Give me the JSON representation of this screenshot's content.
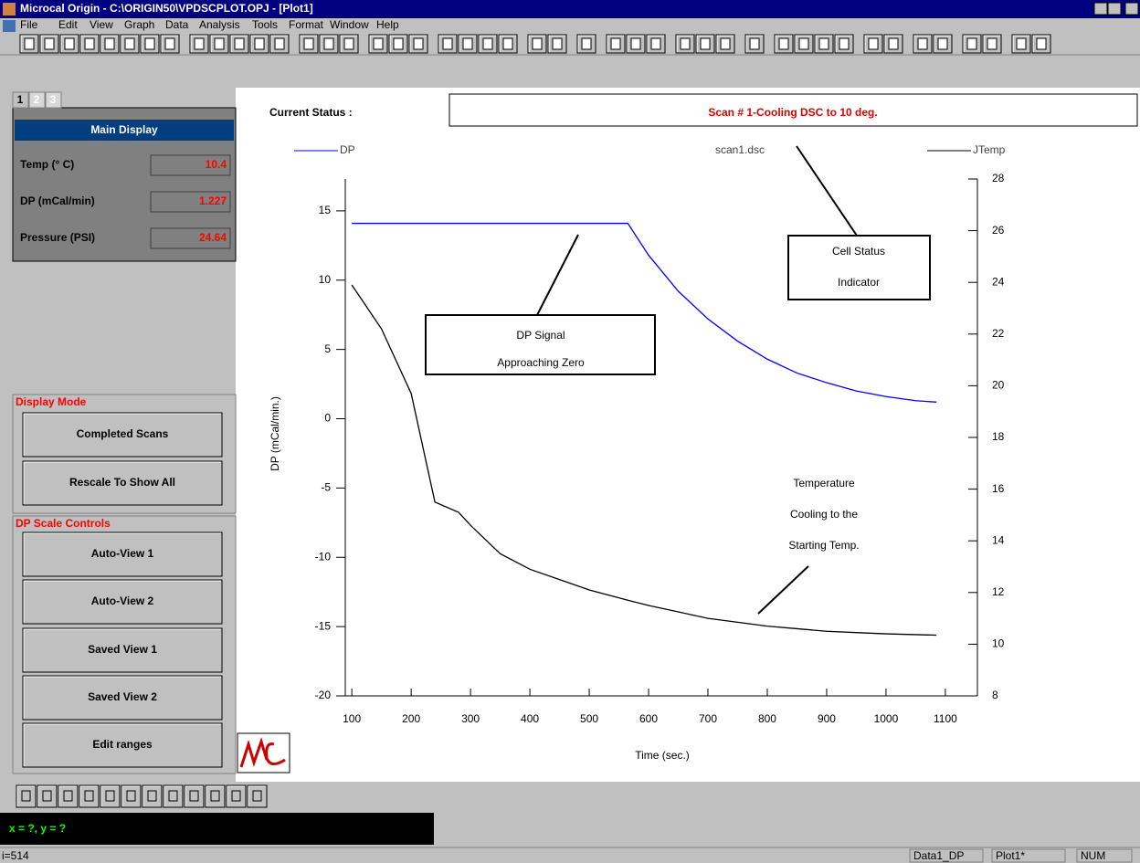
{
  "window": {
    "title": "Microcal Origin - C:\\ORIGIN50\\VPDSCPLOT.OPJ - [Plot1]"
  },
  "menu": [
    "File",
    "Edit",
    "View",
    "Graph",
    "Data",
    "Analysis",
    "Tools",
    "Format",
    "Window",
    "Help"
  ],
  "tabs": [
    "1",
    "2",
    "3"
  ],
  "main_display": {
    "title": "Main Display",
    "fields": [
      {
        "label": "Temp (° C)",
        "value": 10.4
      },
      {
        "label": "DP (mCal/min)",
        "value": 1.227
      },
      {
        "label": "Pressure (PSI)",
        "value": 24.64
      }
    ]
  },
  "display_mode": {
    "title": "Display Mode",
    "buttons": [
      "Completed Scans",
      "Rescale To Show All"
    ]
  },
  "dp_scale": {
    "title": "DP Scale Controls",
    "buttons": [
      "Auto-View 1",
      "Auto-View 2",
      "Saved View 1",
      "Saved View 2",
      "Edit ranges"
    ]
  },
  "status": {
    "label": "Current Status :",
    "text": "Scan # 1-Cooling DSC to 10 deg."
  },
  "chart_data": {
    "type": "line",
    "title": "scan1.dsc",
    "xlabel": "Time (sec.)",
    "ylabel": "DP (mCal/min.)",
    "x": [
      100,
      150,
      200,
      240,
      280,
      300,
      350,
      400,
      500,
      565,
      600,
      650,
      700,
      750,
      800,
      850,
      900,
      950,
      1000,
      1050,
      1085
    ],
    "series": [
      {
        "name": "DP",
        "color": "#0000ff",
        "values": [
          14.1,
          14.1,
          14.1,
          14.1,
          14.1,
          14.1,
          14.1,
          14.1,
          14.1,
          14.1,
          11.8,
          9.2,
          7.2,
          5.6,
          4.3,
          3.3,
          2.6,
          2.0,
          1.6,
          1.3,
          1.2
        ]
      },
      {
        "name": "JTemp",
        "color": "#000000",
        "axis": "y2",
        "values": [
          23.9,
          22.2,
          19.7,
          15.5,
          15.1,
          14.6,
          13.5,
          12.9,
          12.1,
          11.7,
          11.5,
          11.25,
          11.0,
          10.85,
          10.7,
          10.6,
          10.5,
          10.45,
          10.4,
          10.37,
          10.35
        ]
      }
    ],
    "xlim": [
      89,
      1154
    ],
    "xticks": [
      100,
      200,
      300,
      400,
      500,
      600,
      700,
      800,
      900,
      1000,
      1100
    ],
    "ylim": [
      -20,
      17.3
    ],
    "yticks": [
      -20,
      -15,
      -10,
      -5,
      0,
      5,
      10,
      15
    ],
    "y2lim": [
      8,
      28
    ],
    "y2ticks": [
      8,
      10,
      12,
      14,
      16,
      18,
      20,
      22,
      24,
      26,
      28
    ],
    "annotations": [
      {
        "lines": [
          "DP Signal",
          "Approaching Zero"
        ]
      },
      {
        "lines": [
          "Cell Status",
          "Indicator"
        ]
      },
      {
        "lines": [
          "Temperature",
          "Cooling to the",
          "Starting Temp."
        ]
      }
    ]
  },
  "coordinates": "x = ?, y = ?",
  "statusbar": [
    "i=514",
    "Data1_DP",
    "Plot1*",
    "NUM"
  ]
}
